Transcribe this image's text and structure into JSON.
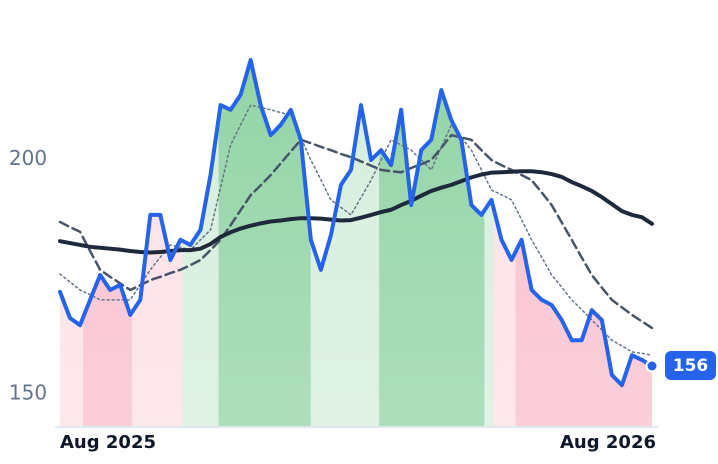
{
  "chart_data": {
    "type": "line",
    "categories": [
      "Aug 2025",
      null,
      null,
      null,
      null,
      null,
      null,
      null,
      null,
      null,
      null,
      null,
      null,
      null,
      null,
      null,
      null,
      null,
      null,
      null,
      null,
      null,
      null,
      null,
      null,
      null,
      null,
      null,
      null,
      null,
      null,
      null,
      null,
      null,
      null,
      null,
      null,
      null,
      null,
      null,
      null,
      null,
      null,
      null,
      null,
      null,
      null,
      null,
      null,
      null,
      null,
      null,
      null,
      null,
      null,
      null,
      null,
      null,
      null,
      "Aug 2026"
    ],
    "ylim": [
      143,
      234
    ],
    "yticks": [
      150,
      200
    ],
    "series": [
      {
        "color": "#2563eb",
        "width": 4,
        "style": "solid",
        "values": [
          171.8,
          166.2,
          164.7,
          170.1,
          175.4,
          172.2,
          173.3,
          166.9,
          170.1,
          188.2,
          188.2,
          178.6,
          182.9,
          181.8,
          185,
          196.7,
          211.6,
          210.6,
          213.8,
          221.2,
          211.6,
          205.2,
          207.4,
          210.6,
          204.2,
          182.9,
          176.5,
          183.9,
          194.6,
          197.8,
          211.6,
          199.9,
          202,
          198.8,
          210.6,
          190.3,
          202,
          204.2,
          214.8,
          208.4,
          204.2,
          190.3,
          188.2,
          191.4,
          182.9,
          178.6,
          182.9,
          172.2,
          170.1,
          169,
          165.8,
          161.5,
          161.5,
          167.9,
          165.8,
          154.1,
          151.9,
          158.3,
          157.3,
          156
        ]
      },
      {
        "color": "#1e293b",
        "width": 4,
        "style": "solid",
        "values": [
          182.6,
          182.2,
          181.8,
          181.4,
          181.2,
          181,
          180.8,
          180.5,
          180.3,
          180.2,
          180.3,
          180.5,
          180.7,
          180.7,
          181,
          182,
          183.5,
          184.5,
          185.3,
          185.9,
          186.4,
          186.8,
          187,
          187.3,
          187.5,
          187.5,
          187.4,
          187.2,
          187,
          187.1,
          187.6,
          188.2,
          188.8,
          189.3,
          190.3,
          191.2,
          192.3,
          193.3,
          194,
          194.6,
          195.4,
          196.2,
          196.8,
          197.2,
          197.3,
          197.4,
          197.5,
          197.5,
          197.3,
          196.9,
          196.3,
          195.2,
          194.3,
          193.3,
          192,
          190.5,
          189,
          188.2,
          187.7,
          186.3
        ]
      },
      {
        "color": "#475569",
        "width": 2.5,
        "style": "dashed",
        "values": [
          186.7,
          185.6,
          184.6,
          180.5,
          176.5,
          175,
          173.6,
          172.2,
          173.2,
          174.3,
          175,
          175.8,
          176.5,
          177.5,
          178.6,
          180.7,
          182.9,
          186,
          189.2,
          192.4,
          194.5,
          196.7,
          199.2,
          201.7,
          204.2,
          203.5,
          202.7,
          202,
          201.2,
          200.5,
          199.6,
          198.7,
          197.8,
          197.5,
          197.3,
          198.2,
          199,
          199.9,
          202.5,
          205.2,
          204.7,
          204.2,
          202,
          199.9,
          198.8,
          197.8,
          196.7,
          195.6,
          193,
          190.3,
          186.6,
          182.9,
          179.1,
          175.4,
          172.7,
          170.1,
          168.5,
          166.9,
          165.5,
          164.1
        ]
      },
      {
        "color": "#64748b",
        "width": 1.5,
        "style": "dotted",
        "values": [
          175.6,
          173.9,
          172.2,
          171.2,
          170.1,
          170.1,
          170.1,
          170.1,
          173.3,
          176.5,
          179.2,
          181.8,
          181.3,
          180.7,
          182.9,
          185,
          194,
          203.1,
          207.4,
          211.6,
          211.1,
          210.6,
          210,
          209.5,
          204.7,
          199.9,
          195.7,
          191.4,
          189.8,
          188.2,
          191.9,
          195.6,
          199.9,
          204.2,
          203.1,
          202,
          199.9,
          197.8,
          202.6,
          207.4,
          204.7,
          202,
          197.8,
          193.5,
          192.5,
          191.4,
          187.2,
          182.9,
          179.2,
          175.4,
          172.8,
          170.1,
          168,
          165.8,
          163.7,
          161.5,
          160.3,
          159,
          158.7,
          158.3
        ]
      }
    ],
    "regions": [
      {
        "start": 0,
        "end": 2.3,
        "color": "#fde0e6"
      },
      {
        "start": 2.3,
        "end": 7.2,
        "color": "#f9bfcd"
      },
      {
        "start": 7.2,
        "end": 12.2,
        "color": "#fde0e6"
      },
      {
        "start": 12.2,
        "end": 15.8,
        "color": "#d5eedc"
      },
      {
        "start": 15.8,
        "end": 25,
        "color": "#93d4a6"
      },
      {
        "start": 25,
        "end": 31.8,
        "color": "#d5eedc"
      },
      {
        "start": 31.8,
        "end": 42.3,
        "color": "#93d4a6"
      },
      {
        "start": 42.3,
        "end": 43.2,
        "color": "#d5eedc"
      },
      {
        "start": 43.2,
        "end": 45.4,
        "color": "#fde0e6"
      },
      {
        "start": 45.4,
        "end": 59,
        "color": "#f9bfcd"
      }
    ]
  }
}
